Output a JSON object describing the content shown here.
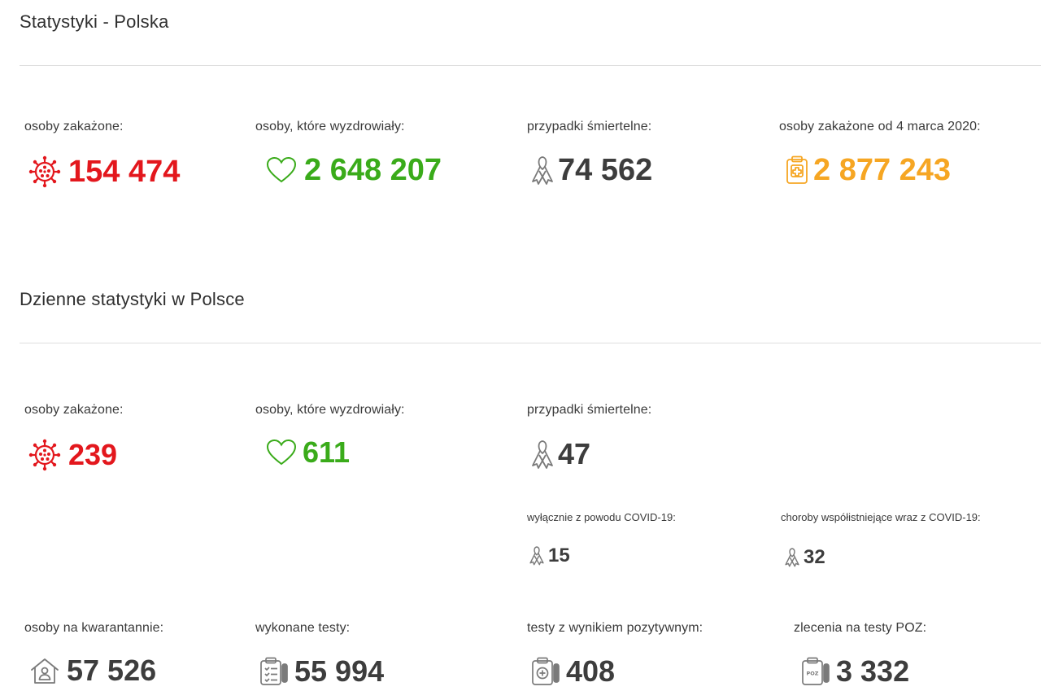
{
  "colors": {
    "red": "#e3171d",
    "green": "#3aab1a",
    "gray": "#3d3d3d",
    "orange": "#f6a623",
    "icon_gray": "#7a7a7a"
  },
  "section_total": {
    "title": "Statystyki - Polska",
    "stats": [
      {
        "label": "osoby zakażone:",
        "value": "154 474",
        "icon": "virus-icon"
      },
      {
        "label": "osoby, które wyzdrowiały:",
        "value": "2 648 207",
        "icon": "heart-icon"
      },
      {
        "label": "przypadki śmiertelne:",
        "value": "74 562",
        "icon": "ribbon-icon"
      },
      {
        "label": "osoby zakażone od 4 marca 2020:",
        "value": "2 877 243",
        "icon": "clipboard-icon"
      }
    ]
  },
  "section_daily": {
    "title": "Dzienne statystyki w Polsce",
    "stats": [
      {
        "label": "osoby zakażone:",
        "value": "239",
        "icon": "virus-icon"
      },
      {
        "label": "osoby, które wyzdrowiały:",
        "value": "611",
        "icon": "heart-icon"
      },
      {
        "label": "przypadki śmiertelne:",
        "value": "47",
        "icon": "ribbon-icon"
      }
    ],
    "death_breakdown": [
      {
        "label": "wyłącznie z powodu COVID-19:",
        "value": "15",
        "icon": "ribbon-icon"
      },
      {
        "label": "choroby współistniejące wraz z COVID-19:",
        "value": "32",
        "icon": "ribbon-icon"
      }
    ],
    "bottom_stats": [
      {
        "label": "osoby na kwarantannie:",
        "value": "57 526",
        "icon": "house-icon"
      },
      {
        "label": "wykonane testy:",
        "value": "55 994",
        "icon": "test-kit-icon"
      },
      {
        "label": "testy z wynikiem pozytywnym:",
        "value": "408",
        "icon": "positive-test-icon"
      },
      {
        "label": "zlecenia na testy POZ:",
        "value": "3 332",
        "icon": "poz-test-icon"
      }
    ]
  },
  "icon_text": {
    "poz": "POZ"
  }
}
